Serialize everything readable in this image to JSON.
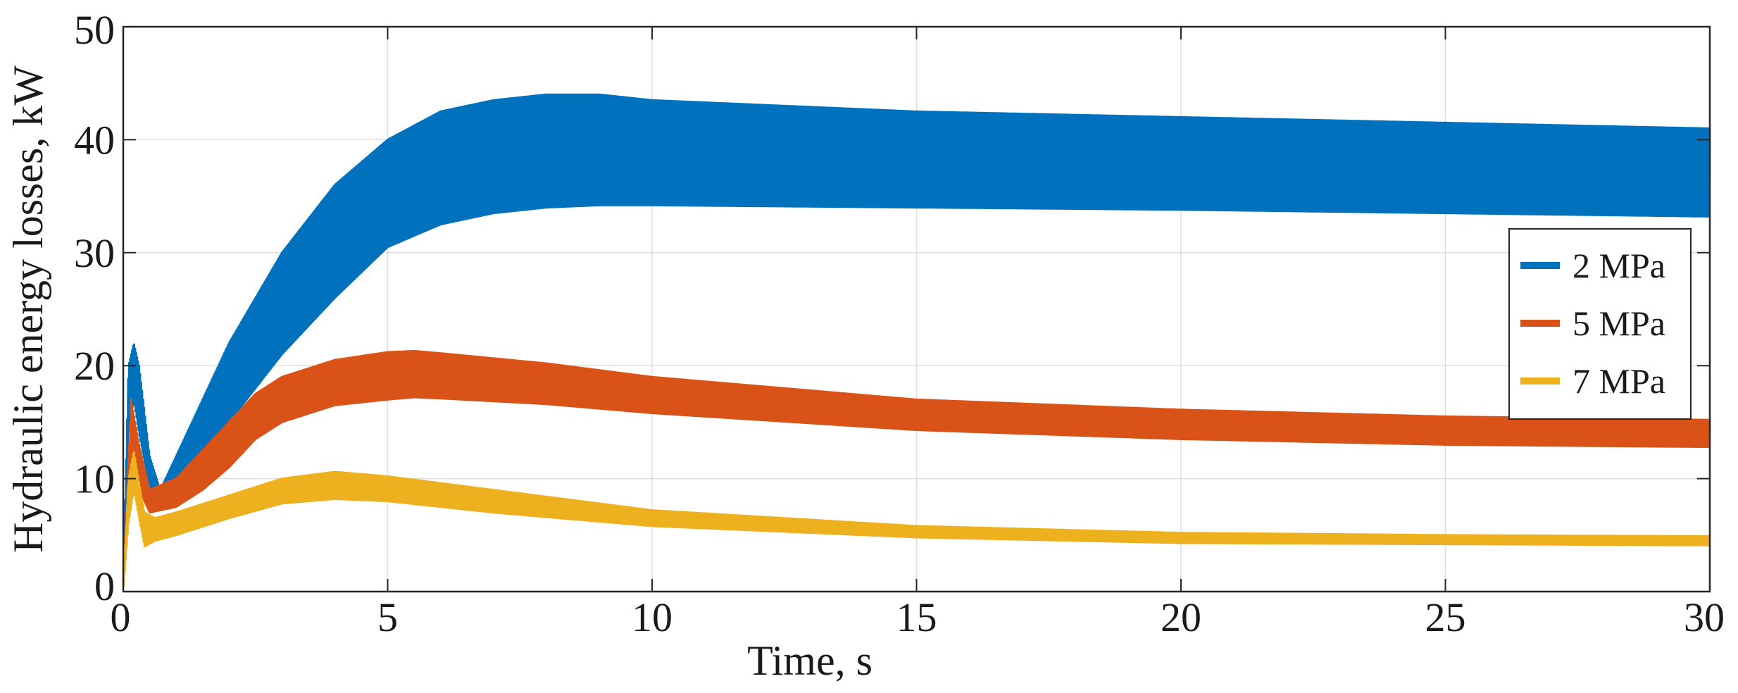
{
  "chart_data": {
    "type": "line",
    "title": "",
    "xlabel": "Time, s",
    "ylabel": "Hydraulic energy losses, kW",
    "xlim": [
      0,
      30
    ],
    "ylim": [
      0,
      50
    ],
    "x_ticks": [
      0,
      5,
      10,
      15,
      20,
      25,
      30
    ],
    "y_ticks": [
      0,
      10,
      20,
      30,
      40,
      50
    ],
    "x_tick_labels": [
      "0",
      "5",
      "10",
      "15",
      "20",
      "25",
      "30"
    ],
    "y_tick_labels": [
      "0",
      "10",
      "20",
      "30",
      "40",
      "50"
    ],
    "grid": true,
    "legend_position": "right",
    "series": [
      {
        "name": "2 MPa",
        "color": "#0072BD",
        "band": [
          [
            0,
            0,
            1
          ],
          [
            0.1,
            14,
            20
          ],
          [
            0.2,
            17,
            22
          ],
          [
            0.3,
            14,
            20
          ],
          [
            0.5,
            9,
            12
          ],
          [
            0.7,
            7.5,
            9
          ],
          [
            1,
            9,
            12
          ],
          [
            1.5,
            12,
            17
          ],
          [
            2,
            15,
            22
          ],
          [
            3,
            21,
            30
          ],
          [
            4,
            26,
            36
          ],
          [
            5,
            30.5,
            40
          ],
          [
            6,
            32.5,
            42.5
          ],
          [
            7,
            33.5,
            43.5
          ],
          [
            8,
            34,
            44
          ],
          [
            9,
            34.2,
            44
          ],
          [
            10,
            34.2,
            43.5
          ],
          [
            15,
            34,
            42.5
          ],
          [
            20,
            33.8,
            42
          ],
          [
            25,
            33.5,
            41.5
          ],
          [
            30,
            33.2,
            41
          ]
        ]
      },
      {
        "name": "5 MPa",
        "color": "#D95319",
        "band": [
          [
            0,
            0,
            1
          ],
          [
            0.15,
            11,
            17
          ],
          [
            0.3,
            9,
            13
          ],
          [
            0.5,
            7,
            9
          ],
          [
            1,
            7.5,
            10
          ],
          [
            1.5,
            9,
            12.5
          ],
          [
            2,
            11,
            15
          ],
          [
            2.5,
            13.5,
            17.5
          ],
          [
            3,
            15,
            19
          ],
          [
            4,
            16.5,
            20.5
          ],
          [
            5,
            17,
            21.2
          ],
          [
            5.5,
            17.2,
            21.3
          ],
          [
            6,
            17.1,
            21.1
          ],
          [
            8,
            16.6,
            20.2
          ],
          [
            10,
            15.8,
            19
          ],
          [
            15,
            14.3,
            17
          ],
          [
            20,
            13.5,
            16.1
          ],
          [
            25,
            13,
            15.5
          ],
          [
            30,
            12.8,
            15.2
          ]
        ]
      },
      {
        "name": "7 MPa",
        "color": "#EDB120",
        "band": [
          [
            0,
            0,
            0.5
          ],
          [
            0.1,
            6,
            10
          ],
          [
            0.2,
            9,
            12.5
          ],
          [
            0.4,
            4,
            7
          ],
          [
            0.6,
            4.5,
            6.5
          ],
          [
            1,
            5,
            7
          ],
          [
            2,
            6.5,
            8.5
          ],
          [
            3,
            7.8,
            10
          ],
          [
            4,
            8.2,
            10.6
          ],
          [
            5,
            8,
            10.2
          ],
          [
            7,
            7,
            9
          ],
          [
            10,
            5.8,
            7.2
          ],
          [
            15,
            4.8,
            5.8
          ],
          [
            20,
            4.3,
            5.2
          ],
          [
            25,
            4.2,
            5
          ],
          [
            30,
            4.1,
            4.9
          ]
        ]
      }
    ]
  }
}
